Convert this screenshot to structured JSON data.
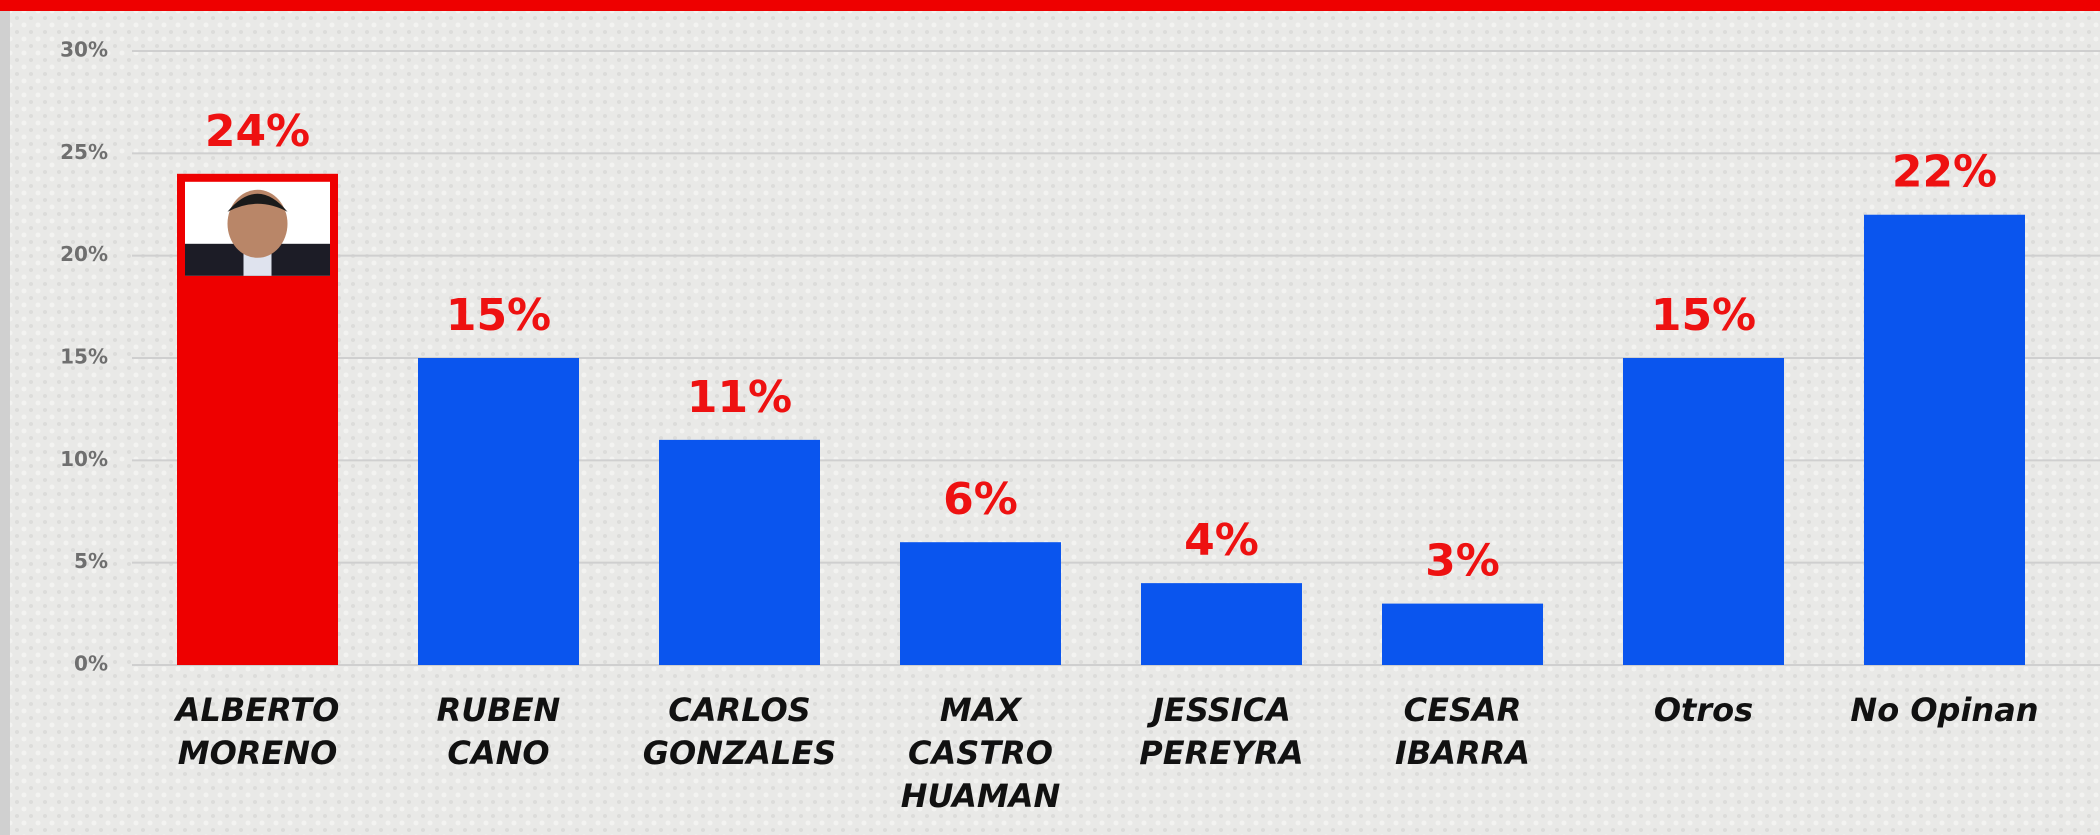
{
  "chart_data": {
    "type": "bar",
    "categories": [
      "ALBERTO\nMORENO",
      "RUBEN\nCANO",
      "CARLOS\nGONZALES",
      "MAX\nCASTRO\nHUAMAN",
      "JESSICA\nPEREYRA",
      "CESAR\nIBARRA",
      "Otros",
      "No Opinan"
    ],
    "values": [
      24,
      15,
      11,
      6,
      4,
      3,
      15,
      22
    ],
    "value_labels": [
      "24%",
      "15%",
      "11%",
      "6%",
      "4%",
      "3%",
      "15%",
      "22%"
    ],
    "colors": [
      "#ee0000",
      "#0a55ee",
      "#0a55ee",
      "#0a55ee",
      "#0a55ee",
      "#0a55ee",
      "#0a55ee",
      "#0a55ee"
    ],
    "ylim": [
      0,
      30
    ],
    "yticks": [
      {
        "value": 0,
        "label": "0%"
      },
      {
        "value": 5,
        "label": "5%"
      },
      {
        "value": 10,
        "label": "10%"
      },
      {
        "value": 15,
        "label": "15%"
      },
      {
        "value": 20,
        "label": "20%"
      },
      {
        "value": 25,
        "label": "25%"
      },
      {
        "value": 30,
        "label": "30%"
      }
    ],
    "grid": true
  }
}
